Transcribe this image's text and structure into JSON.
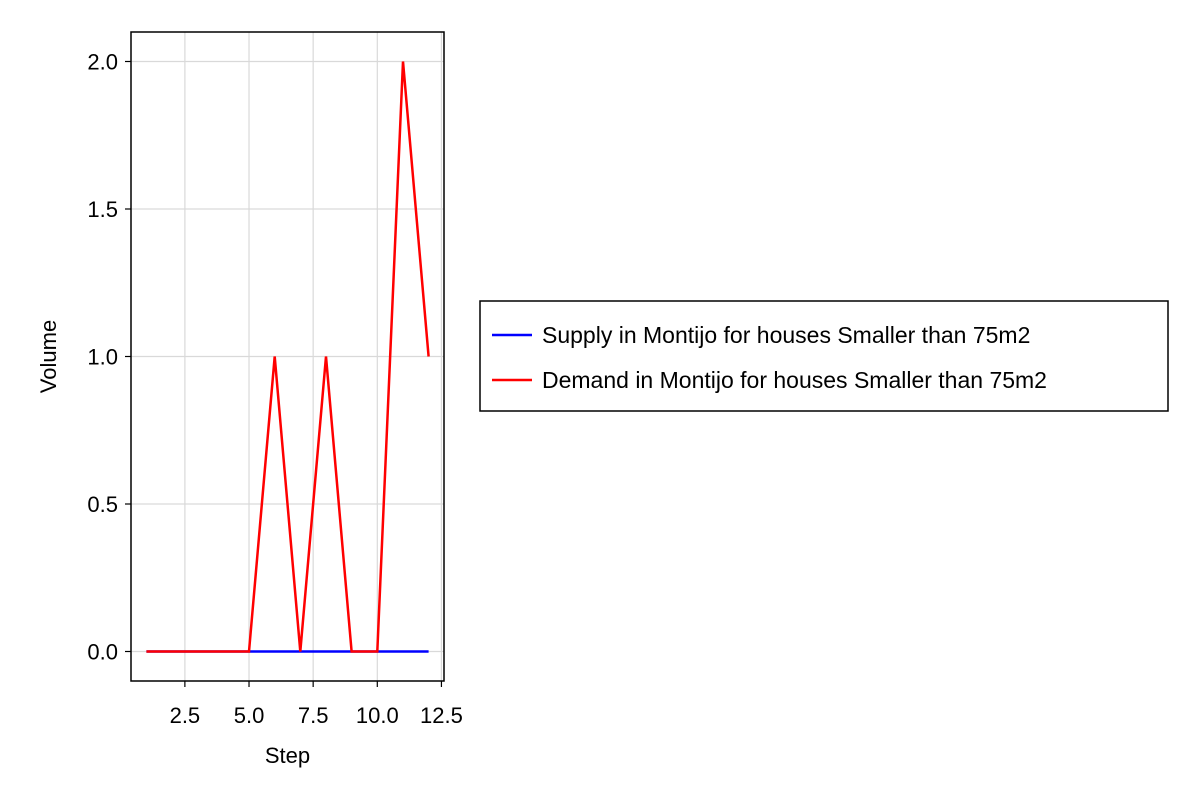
{
  "chart_data": {
    "type": "line",
    "xlabel": "Step",
    "ylabel": "Volume",
    "xlim": [
      0.4,
      12.6
    ],
    "ylim": [
      -0.1,
      2.1
    ],
    "xticks": [
      2.5,
      5.0,
      7.5,
      10.0,
      12.5
    ],
    "xtick_labels": [
      "2.5",
      "5.0",
      "7.5",
      "10.0",
      "12.5"
    ],
    "yticks": [
      0.0,
      0.5,
      1.0,
      1.5,
      2.0
    ],
    "ytick_labels": [
      "0.0",
      "0.5",
      "1.0",
      "1.5",
      "2.0"
    ],
    "grid": true,
    "legend_position": "right",
    "x": [
      1,
      2,
      3,
      4,
      5,
      6,
      7,
      8,
      9,
      10,
      11,
      12
    ],
    "series": [
      {
        "name": "Supply in Montijo for houses Smaller than 75m2",
        "color": "#0000ff",
        "values": [
          0,
          0,
          0,
          0,
          0,
          0,
          0,
          0,
          0,
          0,
          0,
          0
        ]
      },
      {
        "name": "Demand in Montijo for houses Smaller than 75m2",
        "color": "#ff0000",
        "values": [
          0,
          0,
          0,
          0,
          0,
          1,
          0,
          1,
          0,
          0,
          2,
          1
        ]
      }
    ]
  }
}
